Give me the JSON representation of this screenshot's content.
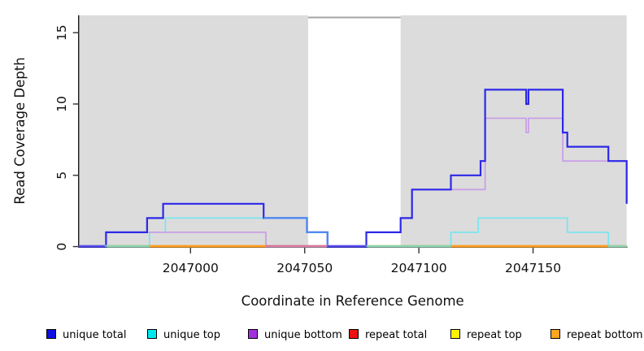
{
  "chart_data": {
    "type": "line",
    "step": true,
    "title": "",
    "xlabel": "Coordinate in Reference Genome",
    "ylabel": "Read Coverage Depth",
    "xlim": [
      2046951,
      2047191
    ],
    "ylim": [
      0,
      16.2
    ],
    "grid": false,
    "legend_position": "bottom",
    "x_ticks": [
      2047000,
      2047050,
      2047100,
      2047150
    ],
    "x_tick_labels": [
      "2047000",
      "2047050",
      "2047100",
      "2047150"
    ],
    "y_ticks": [
      0,
      5,
      10,
      15
    ],
    "y_tick_labels": [
      "0",
      "5",
      "10",
      "15"
    ],
    "background": {
      "repeat_region_color": "#dcdcdc",
      "unique_region_color": "#ffffff",
      "repeat_regions": [
        [
          2046951,
          2047051.5
        ],
        [
          2047092,
          2047191
        ]
      ]
    },
    "series": [
      {
        "name": "unique total",
        "color": "#2d28e8",
        "legend_color": "#0f0fe0",
        "steps": [
          [
            2046951,
            0
          ],
          [
            2046963,
            1
          ],
          [
            2046981,
            2
          ],
          [
            2046988,
            3
          ],
          [
            2047032,
            2
          ],
          [
            2047051,
            1
          ],
          [
            2047060,
            0
          ],
          [
            2047077,
            1
          ],
          [
            2047092,
            2
          ],
          [
            2047097,
            4
          ],
          [
            2047114,
            5
          ],
          [
            2047127,
            6
          ],
          [
            2047129,
            11
          ],
          [
            2047147,
            10
          ],
          [
            2047148,
            11
          ],
          [
            2047163,
            8
          ],
          [
            2047165,
            7
          ],
          [
            2047183,
            6
          ],
          [
            2047191,
            3
          ]
        ]
      },
      {
        "name": "unique top",
        "color": "#7ce4ee",
        "legend_color": "#00e6ee",
        "steps": [
          [
            2046951,
            0
          ],
          [
            2046982,
            1
          ],
          [
            2046989,
            2
          ],
          [
            2047051,
            1
          ],
          [
            2047060,
            0
          ],
          [
            2047114,
            1
          ],
          [
            2047126,
            2
          ],
          [
            2047165,
            1
          ],
          [
            2047183,
            0
          ]
        ]
      },
      {
        "name": "unique bottom",
        "color": "#c9a0e6",
        "legend_color": "#a02fe0",
        "steps": [
          [
            2046951,
            0
          ],
          [
            2046963,
            1
          ],
          [
            2047033,
            0
          ],
          [
            2047077,
            1
          ],
          [
            2047092,
            2
          ],
          [
            2047097,
            4
          ],
          [
            2047129,
            9
          ],
          [
            2047147,
            8
          ],
          [
            2047148,
            9
          ],
          [
            2047163,
            6
          ],
          [
            2047191,
            3
          ]
        ]
      },
      {
        "name": "repeat total",
        "color": "#dd3333",
        "legend_color": "#ee1111",
        "steps": [
          [
            2046951,
            0
          ]
        ]
      },
      {
        "name": "repeat top",
        "color": "#f2ef32",
        "legend_color": "#fff200",
        "steps": [
          [
            2046951,
            0
          ]
        ]
      },
      {
        "name": "repeat bottom",
        "color": "#ff9c1c",
        "legend_color": "#ffa51e",
        "steps": [
          [
            2046951,
            0
          ]
        ]
      }
    ]
  }
}
